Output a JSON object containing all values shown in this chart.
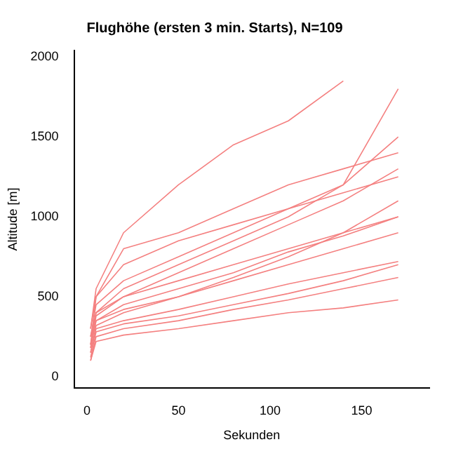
{
  "chart_data": {
    "type": "line",
    "title": "Flughöhe (ersten 3 min. Starts), N=109",
    "xlabel": "Sekunden",
    "ylabel": "Altitude [m]",
    "x": [
      2,
      5,
      20,
      50,
      80,
      110,
      140,
      170
    ],
    "series": [
      {
        "color": "#f48080",
        "values": [
          100,
          250,
          300,
          350,
          420,
          480,
          550,
          620
        ]
      },
      {
        "color": "#f48080",
        "values": [
          150,
          300,
          350,
          420,
          500,
          580,
          650,
          720
        ]
      },
      {
        "color": "#f48080",
        "values": [
          200,
          350,
          420,
          500,
          600,
          700,
          800,
          900
        ]
      },
      {
        "color": "#f48080",
        "values": [
          120,
          280,
          330,
          380,
          450,
          520,
          600,
          700
        ]
      },
      {
        "color": "#f48080",
        "values": [
          250,
          400,
          500,
          600,
          700,
          800,
          900,
          1000
        ]
      },
      {
        "color": "#f48080",
        "values": [
          180,
          350,
          450,
          550,
          650,
          780,
          880,
          1000
        ]
      },
      {
        "color": "#f48080",
        "values": [
          300,
          500,
          700,
          850,
          950,
          1050,
          1150,
          1250
        ]
      },
      {
        "color": "#f48080",
        "values": [
          200,
          500,
          800,
          900,
          1050,
          1200,
          1300,
          1400
        ]
      },
      {
        "color": "#f48080",
        "values": [
          100,
          220,
          260,
          300,
          350,
          400,
          430,
          480
        ]
      },
      {
        "color": "#f48080",
        "values": [
          150,
          320,
          400,
          500,
          620,
          750,
          900,
          1100
        ]
      },
      {
        "color": "#f48080",
        "values": [
          250,
          450,
          600,
          750,
          900,
          1050,
          1200,
          1500
        ]
      },
      {
        "color": "#f48080",
        "values": [
          200,
          400,
          550,
          700,
          850,
          1000,
          1200,
          1800
        ]
      },
      {
        "color": "#f48080",
        "values": [
          180,
          380,
          500,
          650,
          800,
          950,
          1100,
          1300
        ]
      },
      {
        "color": "#f48080",
        "values": [
          300,
          550,
          900,
          1200,
          1450,
          1600,
          1850,
          null
        ]
      }
    ],
    "xlim": [
      -7,
      187
    ],
    "ylim": [
      -70,
      2040
    ],
    "xticks": [
      0,
      50,
      100,
      150
    ],
    "yticks": [
      0,
      500,
      1000,
      1500,
      2000
    ],
    "grid": false,
    "legend": false,
    "marker": "none",
    "line_style": "solid"
  }
}
